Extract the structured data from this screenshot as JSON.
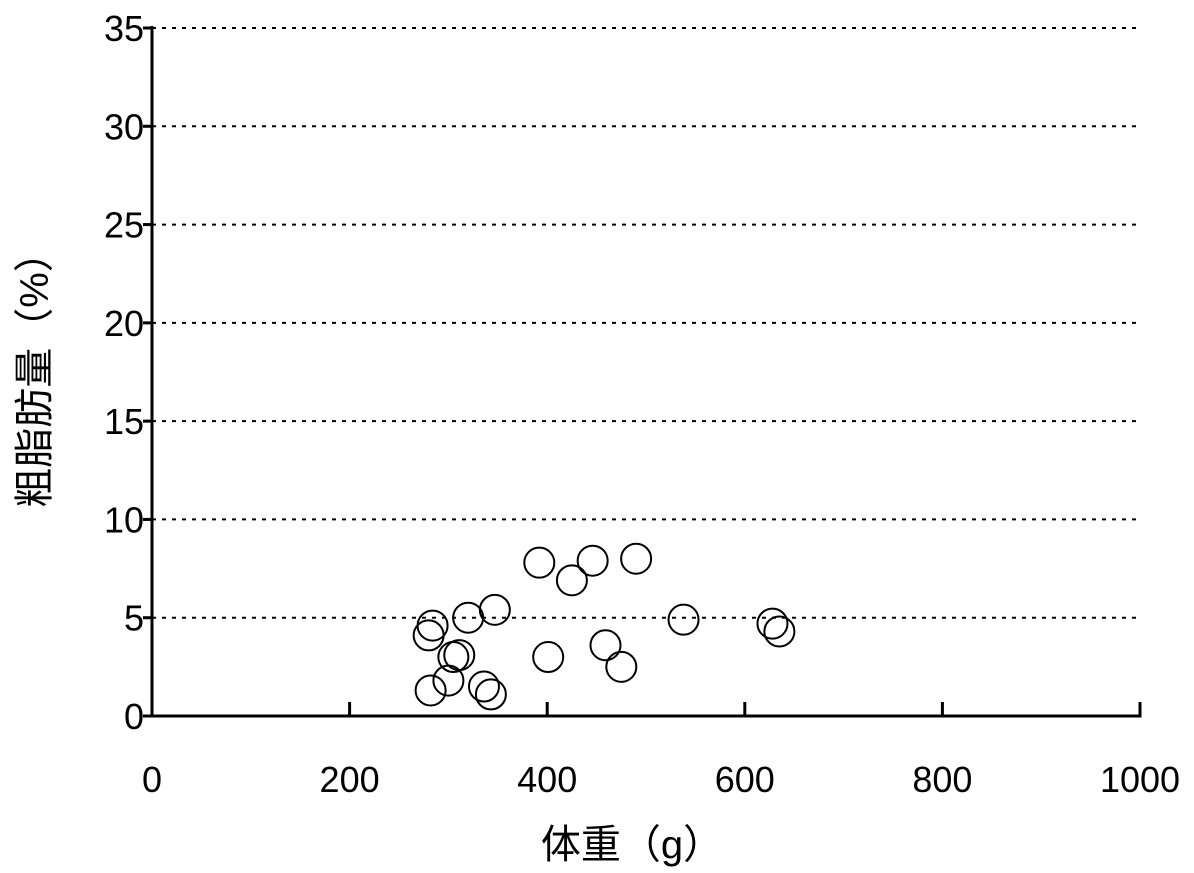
{
  "chart_data": {
    "type": "scatter",
    "title": "",
    "xlabel": "体重（g）",
    "ylabel": "粗脂肪量（%）",
    "xlim": [
      0,
      1000
    ],
    "ylim": [
      0,
      35
    ],
    "x_ticks": [
      0,
      200,
      400,
      600,
      800,
      1000
    ],
    "y_ticks": [
      0,
      5,
      10,
      15,
      20,
      25,
      30,
      35
    ],
    "x_tick_labels": [
      "0",
      "200",
      "400",
      "600",
      "800",
      "1000"
    ],
    "y_tick_labels": [
      "0",
      "5",
      "10",
      "15",
      "20",
      "25",
      "30",
      "35"
    ],
    "grid": {
      "horizontal": true,
      "style": "dotted"
    },
    "marker": "open-circle",
    "colors": {
      "marker_stroke": "#000000",
      "axis": "#000000",
      "grid": "#000000"
    },
    "series": [
      {
        "points": [
          {
            "x": 280,
            "y": 4.1
          },
          {
            "x": 284,
            "y": 4.6
          },
          {
            "x": 282,
            "y": 1.3
          },
          {
            "x": 300,
            "y": 1.8
          },
          {
            "x": 305,
            "y": 3.0
          },
          {
            "x": 311,
            "y": 3.1
          },
          {
            "x": 320,
            "y": 5.0
          },
          {
            "x": 336,
            "y": 1.5
          },
          {
            "x": 343,
            "y": 1.1
          },
          {
            "x": 347,
            "y": 5.4
          },
          {
            "x": 392,
            "y": 7.8
          },
          {
            "x": 401,
            "y": 3.0
          },
          {
            "x": 425,
            "y": 6.9
          },
          {
            "x": 446,
            "y": 7.9
          },
          {
            "x": 459,
            "y": 3.6
          },
          {
            "x": 475,
            "y": 2.5
          },
          {
            "x": 490,
            "y": 8.0
          },
          {
            "x": 538,
            "y": 4.9
          },
          {
            "x": 628,
            "y": 4.7
          },
          {
            "x": 635,
            "y": 4.3
          }
        ]
      }
    ]
  }
}
